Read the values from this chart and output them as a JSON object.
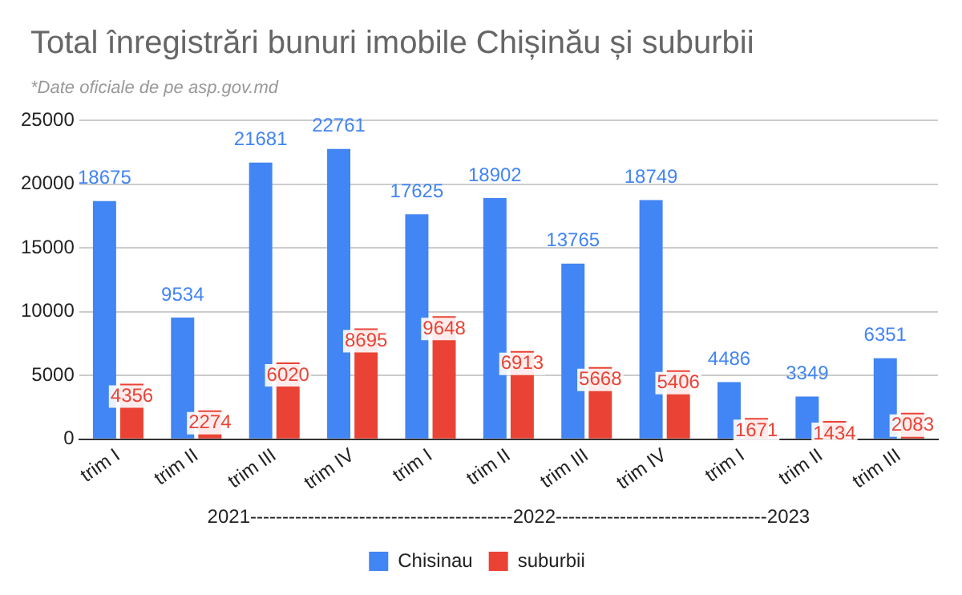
{
  "chart_data": {
    "type": "bar",
    "title": "Total înregistrări bunuri imobile Chișinău și suburbii",
    "subtitle": "*Date oficiale de pe asp.gov.md",
    "xlabel": "2021-----------------------------------------2022---------------------------------2023",
    "categories": [
      "trim I",
      "trim II",
      "trim III",
      "trim IV",
      "trim I",
      "trim II",
      "trim III",
      "trim IV",
      "trim I",
      "trim II",
      "trim III"
    ],
    "series": [
      {
        "name": "Chisinau",
        "color": "#4285f4",
        "values": [
          18675,
          9534,
          21681,
          22761,
          17625,
          18902,
          13765,
          18749,
          4486,
          3349,
          6351
        ]
      },
      {
        "name": "suburbii",
        "color": "#ea4335",
        "values": [
          4356,
          2274,
          6020,
          8695,
          9648,
          6913,
          5668,
          5406,
          1671,
          1434,
          2083
        ]
      }
    ],
    "ylim": [
      0,
      25000
    ],
    "yticks": [
      0,
      5000,
      10000,
      15000,
      20000,
      25000
    ],
    "grid": "y",
    "legend": "bottom",
    "data_labels": true
  }
}
